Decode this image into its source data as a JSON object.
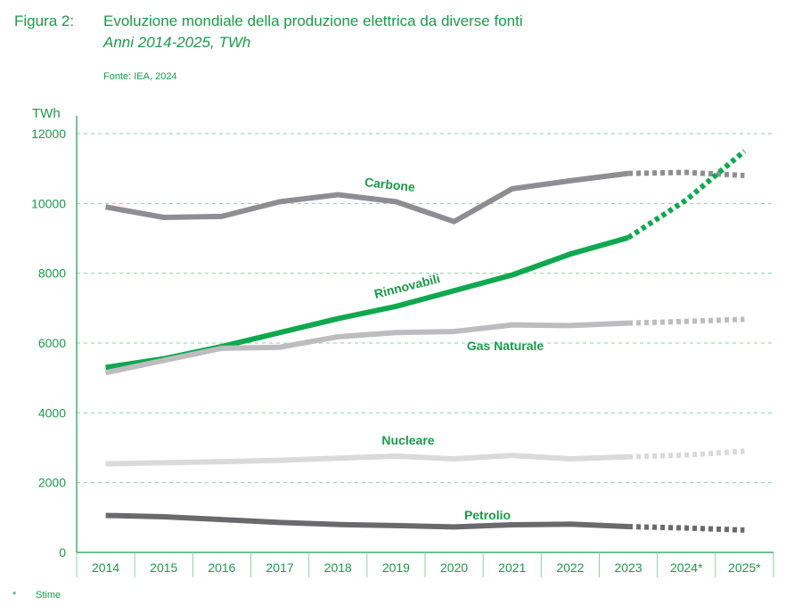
{
  "figure": {
    "number": "Figura 2:",
    "title": "Evoluzione mondiale della produzione elettrica da diverse fonti",
    "subtitle": "Anni 2014-2025, TWh",
    "source": "Fonte: IEA, 2024"
  },
  "footnote": {
    "mark": "*",
    "text": "Stime"
  },
  "colors": {
    "accent": "#1a9a4a",
    "grid": "#8fcfa6"
  },
  "chart_data": {
    "type": "line",
    "ylabel": "TWh",
    "ylim": [
      0,
      12000
    ],
    "yticks": [
      0,
      2000,
      4000,
      6000,
      8000,
      10000,
      12000
    ],
    "categories": [
      "2014",
      "2015",
      "2016",
      "2017",
      "2018",
      "2019",
      "2020",
      "2021",
      "2022",
      "2023",
      "2024*",
      "2025*"
    ],
    "grid": true,
    "estimated_from_index": 10,
    "series": [
      {
        "name": "Carbone",
        "color": "#8e8e92",
        "values": [
          9900,
          9600,
          9630,
          10050,
          10250,
          10050,
          9480,
          10420,
          10650,
          10860,
          10890,
          10800
        ]
      },
      {
        "name": "Rinnovabili",
        "color": "#0ea84f",
        "values": [
          5300,
          5550,
          5900,
          6300,
          6700,
          7050,
          7500,
          7950,
          8550,
          9020,
          10100,
          11500
        ]
      },
      {
        "name": "Gas Naturale",
        "color": "#bdbdbf",
        "values": [
          5150,
          5500,
          5850,
          5880,
          6180,
          6300,
          6330,
          6520,
          6500,
          6570,
          6620,
          6680
        ]
      },
      {
        "name": "Nucleare",
        "color": "#dadadb",
        "values": [
          2540,
          2570,
          2600,
          2640,
          2700,
          2760,
          2680,
          2780,
          2680,
          2740,
          2790,
          2900
        ]
      },
      {
        "name": "Petrolio",
        "color": "#6a6a6c",
        "values": [
          1060,
          1020,
          940,
          860,
          800,
          770,
          730,
          790,
          810,
          740,
          700,
          640
        ]
      }
    ]
  }
}
